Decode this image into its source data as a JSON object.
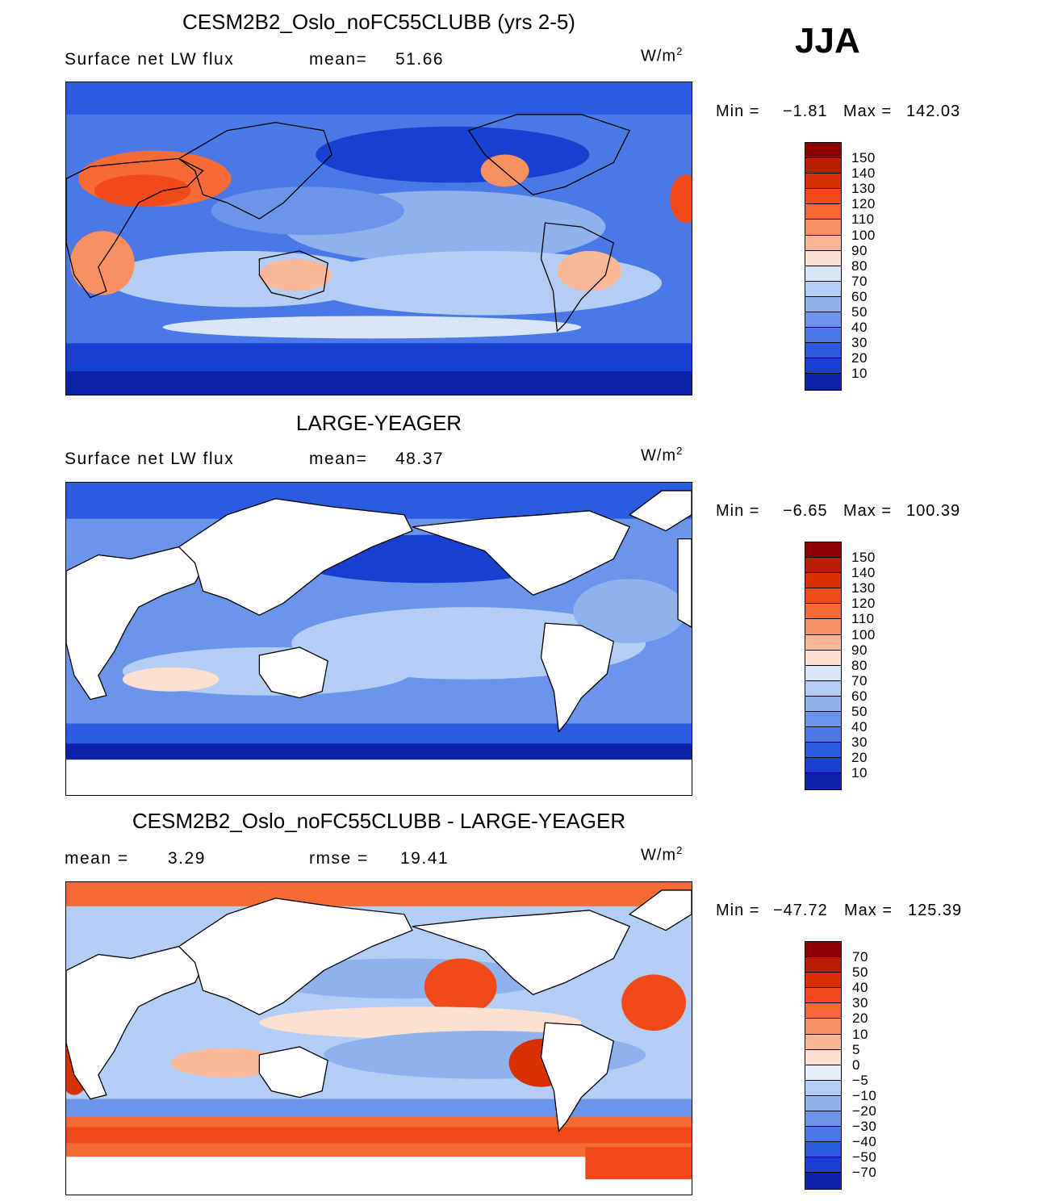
{
  "season": "JJA",
  "units_base": "W/m",
  "units_exp": "2",
  "panels": [
    {
      "title": "CESM2B2_Oslo_noFC55CLUBB (yrs 2-5)",
      "left_label": "Surface net LW flux",
      "right_label": "mean=",
      "right_value": "51.66",
      "min_label": "Min =",
      "min_value": "−1.81",
      "max_label": "Max =",
      "max_value": "142.03",
      "land_masked": false,
      "colorbar": [
        "150",
        "140",
        "130",
        "120",
        "110",
        "100",
        "90",
        "80",
        "70",
        "60",
        "50",
        "40",
        "30",
        "20",
        "10"
      ],
      "colors": [
        "#8b0000",
        "#b81f00",
        "#d93000",
        "#f04a18",
        "#f56a35",
        "#f89062",
        "#fbb898",
        "#fde0cf",
        "#d8e6f8",
        "#b4cdf4",
        "#8fb2ef",
        "#6a95ea",
        "#4a78e6",
        "#2a5be0",
        "#1840d0",
        "#0a22a8"
      ]
    },
    {
      "title": "LARGE-YEAGER",
      "left_label": "Surface net LW flux",
      "right_label": "mean=",
      "right_value": "48.37",
      "min_label": "Min =",
      "min_value": "−6.65",
      "max_label": "Max =",
      "max_value": "100.39",
      "land_masked": true,
      "colorbar": [
        "150",
        "140",
        "130",
        "120",
        "110",
        "100",
        "90",
        "80",
        "70",
        "60",
        "50",
        "40",
        "30",
        "20",
        "10"
      ],
      "colors": [
        "#8b0000",
        "#b81f00",
        "#d93000",
        "#f04a18",
        "#f56a35",
        "#f89062",
        "#fbb898",
        "#fde0cf",
        "#d8e6f8",
        "#b4cdf4",
        "#8fb2ef",
        "#6a95ea",
        "#4a78e6",
        "#2a5be0",
        "#1840d0",
        "#0a22a8"
      ]
    },
    {
      "title": "CESM2B2_Oslo_noFC55CLUBB - LARGE-YEAGER",
      "left_label": "mean =",
      "left_value": "3.29",
      "right_label": "rmse =",
      "right_value": "19.41",
      "min_label": "Min =",
      "min_value": "−47.72",
      "max_label": "Max =",
      "max_value": "125.39",
      "land_masked": true,
      "colorbar": [
        "70",
        "50",
        "40",
        "30",
        "20",
        "10",
        "5",
        "0",
        "−5",
        "−10",
        "−20",
        "−30",
        "−40",
        "−50",
        "−70"
      ],
      "colors": [
        "#8b0000",
        "#b81f00",
        "#d93000",
        "#f04a18",
        "#f56a35",
        "#f89062",
        "#fbb898",
        "#fde0cf",
        "#e6eefa",
        "#b4cdf4",
        "#8fb2ef",
        "#6a95ea",
        "#4a78e6",
        "#2a5be0",
        "#1840d0",
        "#0a22a8"
      ]
    }
  ]
}
